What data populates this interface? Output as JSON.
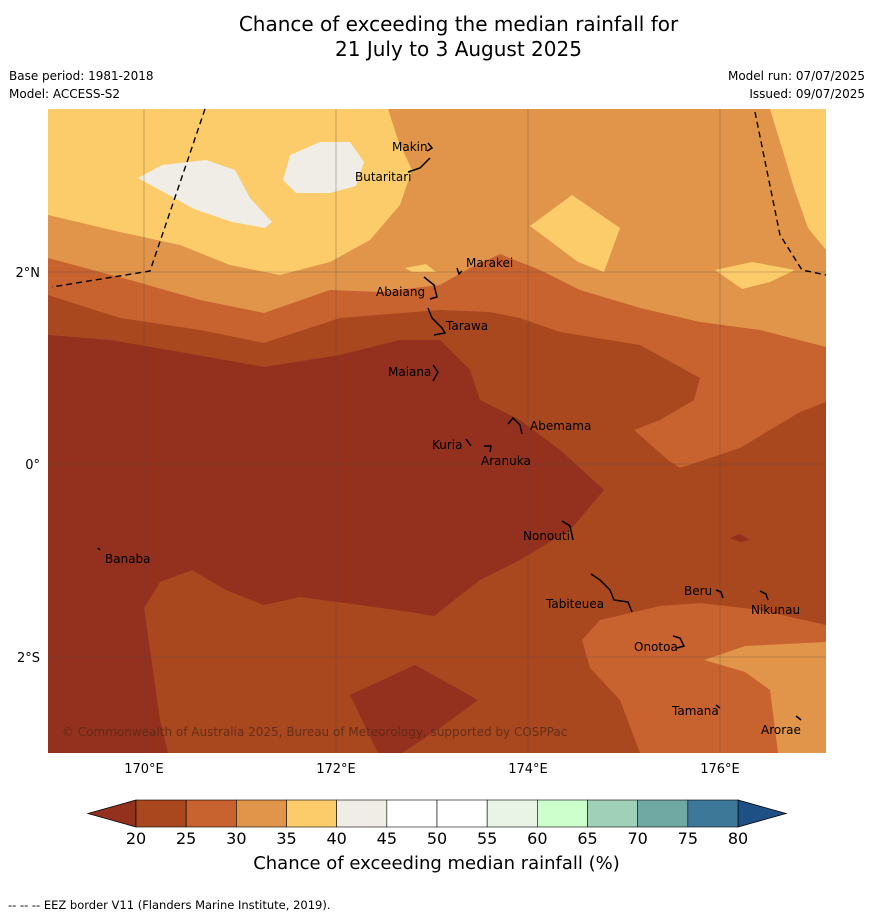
{
  "title_line1": "Chance of exceeding the median rainfall for",
  "title_line2": "21 July to 3 August 2025",
  "meta": {
    "base_period": "Base period: 1981-2018",
    "model": "Model: ACCESS-S2",
    "model_run": "Model run: 07/07/2025",
    "issued": "Issued: 09/07/2025"
  },
  "copyright": "© Commonwealth of Australia 2025, Bureau of Meteorology, supported by COSPPac",
  "axes": {
    "lon_ticks": [
      "170°E",
      "172°E",
      "174°E",
      "176°E"
    ],
    "lat_ticks": [
      "2°N",
      "0°",
      "2°S"
    ]
  },
  "places": [
    {
      "name": "Makin"
    },
    {
      "name": "Butaritari"
    },
    {
      "name": "Marakei"
    },
    {
      "name": "Abaiang"
    },
    {
      "name": "Tarawa"
    },
    {
      "name": "Maiana"
    },
    {
      "name": "Abemama"
    },
    {
      "name": "Kuria"
    },
    {
      "name": "Aranuka"
    },
    {
      "name": "Nonouti"
    },
    {
      "name": "Banaba"
    },
    {
      "name": "Beru"
    },
    {
      "name": "Tabiteuea"
    },
    {
      "name": "Nikunau"
    },
    {
      "name": "Onotoa"
    },
    {
      "name": "Tamana"
    },
    {
      "name": "Arorae"
    }
  ],
  "colorbar": {
    "title": "Chance of exceeding median rainfall (%)",
    "ticks": [
      "20",
      "25",
      "30",
      "35",
      "40",
      "45",
      "50",
      "55",
      "60",
      "65",
      "70",
      "75",
      "80"
    ],
    "colors": [
      "#a9471f",
      "#c8622f",
      "#e0954a",
      "#fccc6a",
      "#f0ece6",
      "#ffffff",
      "#ffffff",
      "#e9f3e6",
      "#ccffcc",
      "#a0d0b8",
      "#70a8a4",
      "#3e7898"
    ],
    "under_color": "#93301e",
    "over_color": "#1f5085"
  },
  "footer": "--  --  -- EEZ border V11 (Flanders Marine Institute, 2019)."
}
